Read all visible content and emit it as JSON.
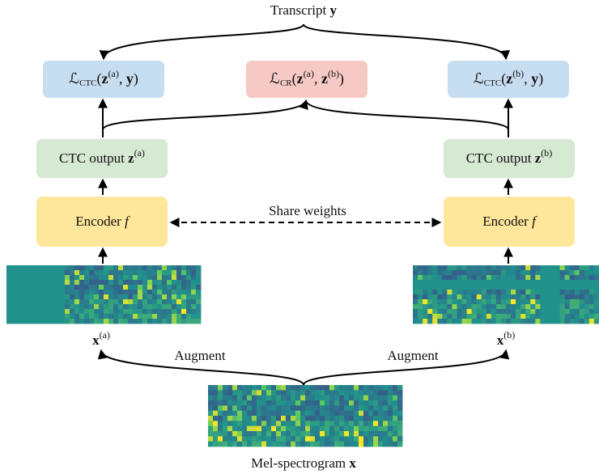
{
  "transcript": [
    {
      "text": "Transcript "
    },
    {
      "bold": "y"
    }
  ],
  "loss_a": [
    {
      "text": "ℒ"
    },
    {
      "sub": "CTC"
    },
    {
      "text": "("
    },
    {
      "bold": "z"
    },
    {
      "sup": "(a)"
    },
    {
      "text": ", "
    },
    {
      "bold": "y"
    },
    {
      "text": ")"
    }
  ],
  "loss_cr": [
    {
      "text": "ℒ"
    },
    {
      "sub": "CR"
    },
    {
      "text": "("
    },
    {
      "bold": "z"
    },
    {
      "sup": "(a)"
    },
    {
      "text": ", "
    },
    {
      "bold": "z"
    },
    {
      "sup": "(b)"
    },
    {
      "text": ")"
    }
  ],
  "loss_b": [
    {
      "text": "ℒ"
    },
    {
      "sub": "CTC"
    },
    {
      "text": "("
    },
    {
      "bold": "z"
    },
    {
      "sup": "(b)"
    },
    {
      "text": ", "
    },
    {
      "bold": "y"
    },
    {
      "text": ")"
    }
  ],
  "ctc_a": [
    {
      "text": "CTC output "
    },
    {
      "bold": "z"
    },
    {
      "sup": "(a)"
    }
  ],
  "ctc_b": [
    {
      "text": "CTC output "
    },
    {
      "bold": "z"
    },
    {
      "sup": "(b)"
    }
  ],
  "encoder_a": [
    {
      "text": "Encoder "
    },
    {
      "italic": "f"
    }
  ],
  "encoder_b": [
    {
      "text": "Encoder "
    },
    {
      "italic": "f"
    }
  ],
  "share": [
    {
      "text": "Share weights"
    }
  ],
  "input_a": [
    {
      "bold": "x"
    },
    {
      "sup": "(a)"
    }
  ],
  "input_b": [
    {
      "bold": "x"
    },
    {
      "sup": "(b)"
    }
  ],
  "augment_a": [
    {
      "text": "Augment"
    }
  ],
  "augment_b": [
    {
      "text": "Augment"
    }
  ],
  "mel": [
    {
      "text": "Mel-spectrogram "
    },
    {
      "bold": "x"
    }
  ]
}
